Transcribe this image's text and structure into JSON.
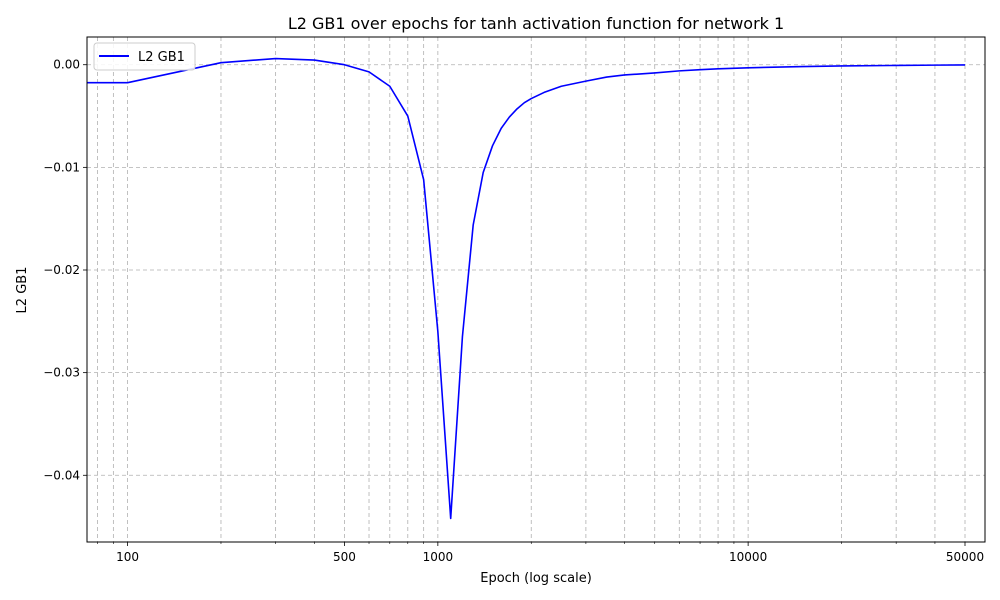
{
  "chart_data": {
    "type": "line",
    "title": "L2 GB1 over epochs for tanh activation function for network 1",
    "xlabel": "Epoch (log scale)",
    "ylabel": "L2 GB1",
    "xscale": "log",
    "xlim": [
      74,
      58000
    ],
    "ylim": [
      -0.0465,
      0.0027
    ],
    "grid": "on (major and minor, dashed)",
    "legend_position": "top-left",
    "x_ticks": [
      {
        "value": 100,
        "label": "100"
      },
      {
        "value": 500,
        "label": "500"
      },
      {
        "value": 1000,
        "label": "1000"
      },
      {
        "value": 10000,
        "label": "10000"
      },
      {
        "value": 50000,
        "label": "50000"
      }
    ],
    "y_ticks": [
      {
        "value": 0.0,
        "label": "0.00"
      },
      {
        "value": -0.01,
        "label": "−0.01"
      },
      {
        "value": -0.02,
        "label": "−0.02"
      },
      {
        "value": -0.03,
        "label": "−0.03"
      },
      {
        "value": -0.04,
        "label": "−0.04"
      }
    ],
    "minor_x_gridlines": [
      80,
      90,
      200,
      300,
      400,
      600,
      700,
      800,
      900,
      2000,
      3000,
      4000,
      5000,
      6000,
      7000,
      8000,
      9000,
      20000,
      30000,
      40000
    ],
    "series": [
      {
        "name": "L2 GB1",
        "color": "#0000ff",
        "x": [
          74,
          100,
          200,
          300,
          400,
          500,
          600,
          700,
          800,
          900,
          1000,
          1100,
          1200,
          1300,
          1400,
          1500,
          1600,
          1700,
          1800,
          1900,
          2000,
          2200,
          2500,
          3000,
          3500,
          4000,
          5000,
          6000,
          7000,
          8000,
          10000,
          15000,
          20000,
          30000,
          40000,
          50000
        ],
        "y": [
          -0.00175,
          -0.00175,
          0.0002,
          0.0006,
          0.00045,
          0.0,
          -0.0007,
          -0.0021,
          -0.005,
          -0.0112,
          -0.026,
          -0.0442,
          -0.0265,
          -0.0156,
          -0.0105,
          -0.0079,
          -0.0062,
          -0.0051,
          -0.0043,
          -0.0037,
          -0.0033,
          -0.0027,
          -0.0021,
          -0.0016,
          -0.0012,
          -0.001,
          -0.0008,
          -0.0006,
          -0.00048,
          -0.0004,
          -0.0003,
          -0.00018,
          -0.00012,
          -7e-05,
          -4e-05,
          -2e-05
        ]
      }
    ]
  }
}
